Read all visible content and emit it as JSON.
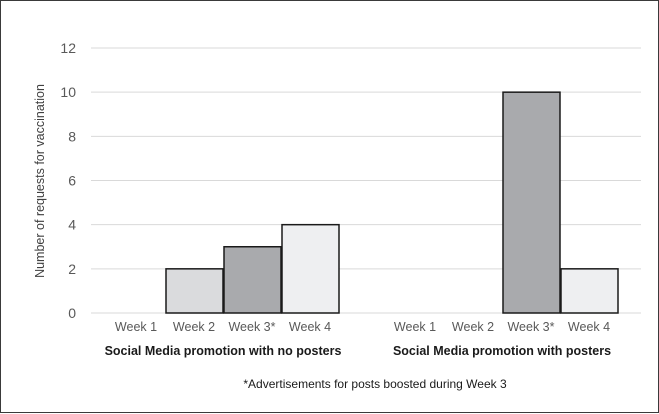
{
  "chart_data": {
    "type": "bar",
    "ylabel": "Number of requests for vaccination",
    "ylim": [
      0,
      12
    ],
    "yticks": [
      "0",
      "2",
      "4",
      "6",
      "8",
      "10",
      "12"
    ],
    "grid": true,
    "groups": [
      {
        "name": "Social Media promotion with no posters",
        "categories": [
          "Week 1",
          "Week 2",
          "Week 3*",
          "Week 4"
        ],
        "values": [
          0,
          2,
          3,
          4
        ]
      },
      {
        "name": "Social Media promotion with posters",
        "categories": [
          "Week 1",
          "Week 2",
          "Week 3*",
          "Week 4"
        ],
        "values": [
          0,
          0,
          10,
          2
        ]
      }
    ],
    "week_colors": [
      "#e6e6e6",
      "#dadbdd",
      "#a9aaad",
      "#eeeff1"
    ],
    "footnote": "*Advertisements for posts boosted during Week 3"
  }
}
